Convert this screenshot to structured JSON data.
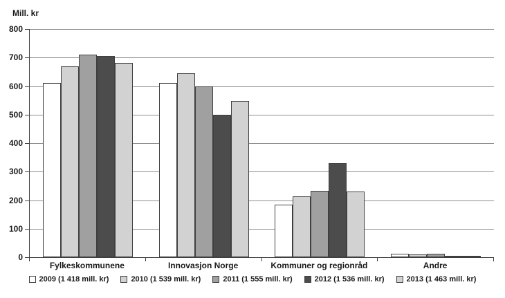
{
  "chart_data": {
    "type": "bar",
    "title": "",
    "ylabel": "Mill. kr",
    "xlabel": "",
    "ylim": [
      0,
      800
    ],
    "yticks": [
      800,
      700,
      600,
      500,
      400,
      300,
      200,
      100,
      0
    ],
    "grid": true,
    "legend_position": "bottom",
    "categories": [
      "Fylkeskommunene",
      "Innovasjon Norge",
      "Kommuner og regionråd",
      "Andre"
    ],
    "series": [
      {
        "name": "2009 (1 418 mill. kr)",
        "color": "#ffffff",
        "values": [
          610,
          612,
          185,
          11
        ]
      },
      {
        "name": "2010 (1 539 mill. kr)",
        "color": "#d2d2d2",
        "values": [
          670,
          646,
          213,
          10
        ]
      },
      {
        "name": "2011 (1 555 mill. kr)",
        "color": "#a0a0a0",
        "values": [
          710,
          600,
          233,
          12
        ]
      },
      {
        "name": "2012 (1 536 mill. kr)",
        "color": "#4c4c4c",
        "values": [
          705,
          500,
          330,
          1
        ]
      },
      {
        "name": "2013 (1 463 mill. kr)",
        "color": "#d2d2d2",
        "values": [
          681,
          549,
          230,
          3
        ]
      }
    ],
    "colors": {
      "axis": "#3f3f3f",
      "gridline": "#8c8c8c",
      "bar_border": "#3f3f3f",
      "text": "#1a1a1a"
    }
  }
}
